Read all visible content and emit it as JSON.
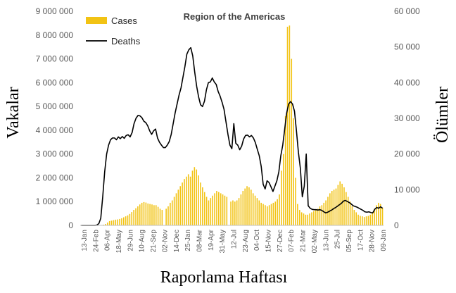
{
  "chart_data": {
    "type": "bar+line",
    "title": "Region of the Americas",
    "xlabel": "Raporlama Haftası",
    "ylabel_left": "Vakalar",
    "ylabel_right": "Ölümler",
    "ylim_left": [
      0,
      9000000
    ],
    "ylim_right": [
      0,
      60000
    ],
    "yticks_left": [
      "0",
      "1 000 000",
      "2 000 000",
      "3 000 000",
      "4 000 000",
      "5 000 000",
      "6 000 000",
      "7 000 000",
      "8 000 000",
      "9 000 000"
    ],
    "yticks_right": [
      "0",
      "10 000",
      "20 000",
      "30 000",
      "40 000",
      "50 000",
      "60 000"
    ],
    "x_tick_labels": [
      "13-Jan",
      "24-Feb",
      "06-Apr",
      "18-May",
      "29-Jun",
      "10-Aug",
      "21-Sep",
      "02-Nov",
      "14-Dec",
      "25-Jan",
      "08-Mar",
      "19-Apr",
      "31-May",
      "12-Jul",
      "23-Aug",
      "04-Oct",
      "15-Nov",
      "27-Dec",
      "07-Feb",
      "21-Mar",
      "02-May",
      "13-Jun",
      "25-Jul",
      "05-Sep",
      "17-Oct",
      "28-Nov",
      "09-Jan"
    ],
    "legend": {
      "position": "top-left",
      "items": [
        {
          "name": "Cases",
          "color": "#F2C314"
        },
        {
          "name": "Deaths",
          "color": "#000000"
        }
      ]
    },
    "grid": false,
    "series": [
      {
        "name": "Cases",
        "type": "bar",
        "axis": "left",
        "color": "#F2C314",
        "values": [
          0,
          0,
          0,
          0,
          0,
          0,
          0,
          0,
          2000,
          5000,
          10000,
          30000,
          60000,
          120000,
          180000,
          200000,
          220000,
          240000,
          250000,
          270000,
          300000,
          340000,
          380000,
          420000,
          480000,
          560000,
          650000,
          720000,
          800000,
          880000,
          950000,
          980000,
          960000,
          920000,
          900000,
          880000,
          850000,
          850000,
          780000,
          700000,
          650000,
          0,
          700000,
          800000,
          950000,
          1050000,
          1200000,
          1350000,
          1500000,
          1650000,
          1800000,
          1950000,
          2050000,
          2150000,
          2050000,
          2300000,
          2450000,
          2350000,
          2100000,
          1800000,
          1600000,
          1400000,
          1200000,
          1050000,
          1150000,
          1250000,
          1350000,
          1450000,
          1400000,
          1350000,
          1300000,
          1250000,
          1200000,
          0,
          1000000,
          1050000,
          1000000,
          1050000,
          1150000,
          1300000,
          1450000,
          1550000,
          1650000,
          1600000,
          1500000,
          1350000,
          1250000,
          1150000,
          1050000,
          950000,
          900000,
          850000,
          800000,
          850000,
          900000,
          950000,
          1000000,
          1100000,
          1300000,
          2300000,
          3000000,
          4600000,
          8350000,
          8400000,
          7000000,
          4500000,
          2000000,
          900000,
          650000,
          550000,
          500000,
          450000,
          450000,
          500000,
          550000,
          600000,
          650000,
          700000,
          800000,
          850000,
          950000,
          1050000,
          1200000,
          1350000,
          1450000,
          1500000,
          1550000,
          1700000,
          1850000,
          1750000,
          1600000,
          1400000,
          1200000,
          1000000,
          800000,
          650000,
          550000,
          450000,
          400000,
          380000,
          350000,
          380000,
          400000,
          450000,
          550000,
          700000,
          850000,
          950000,
          900000,
          750000
        ]
      },
      {
        "name": "Deaths",
        "type": "line",
        "axis": "right",
        "color": "#000000",
        "values": [
          0,
          0,
          0,
          0,
          0,
          0,
          0,
          0,
          100,
          500,
          2000,
          8000,
          15000,
          20000,
          22500,
          24000,
          24500,
          24500,
          24000,
          24800,
          24300,
          24900,
          24400,
          25200,
          25400,
          24800,
          26000,
          28500,
          30000,
          30800,
          30700,
          30200,
          29200,
          28800,
          27900,
          26500,
          25500,
          26500,
          27000,
          24500,
          23300,
          22500,
          21800,
          21800,
          22500,
          23500,
          25500,
          28500,
          31500,
          34000,
          36500,
          38500,
          41500,
          44500,
          48000,
          49200,
          49800,
          47500,
          43000,
          39000,
          36000,
          33800,
          33300,
          34800,
          38000,
          40000,
          40200,
          41300,
          40200,
          39500,
          37500,
          36200,
          34500,
          32500,
          29000,
          25500,
          22500,
          21500,
          28500,
          23000,
          22500,
          21200,
          22200,
          24200,
          25200,
          25300,
          24800,
          25200,
          24500,
          23200,
          21300,
          19500,
          16500,
          11500,
          10200,
          12500,
          12000,
          10800,
          9500,
          11000,
          12500,
          15000,
          19500,
          22500,
          27000,
          31500,
          34000,
          34700,
          34000,
          32000,
          26500,
          20500,
          16000,
          8000,
          11000,
          20000,
          5500,
          4800,
          4500,
          4400,
          4400,
          4300,
          4400,
          4200,
          3800,
          3500,
          3700,
          4000,
          4300,
          4700,
          5000,
          5400,
          5800,
          6200,
          6800,
          7000,
          6700,
          6400,
          6000,
          5500,
          5300,
          5100,
          4800,
          4500,
          4200,
          3800,
          3700,
          3800,
          3600,
          3500,
          4500,
          5000,
          4800,
          5200,
          4800
        ]
      }
    ]
  }
}
